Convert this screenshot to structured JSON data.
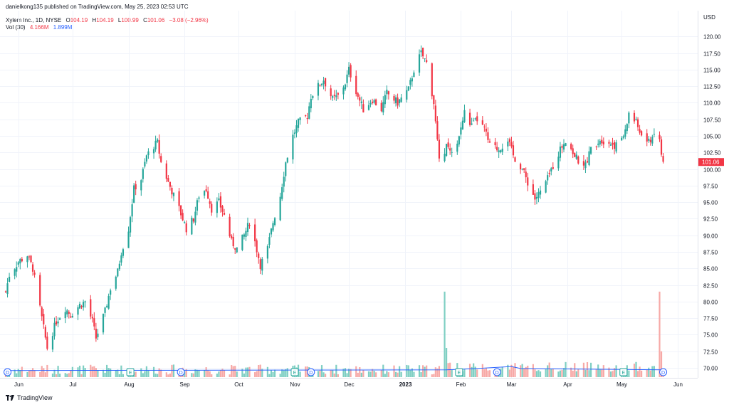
{
  "header": {
    "published": "danielkong135 published on TradingView.com, May 25, 2023 02:53 UTC"
  },
  "legend": {
    "symbol": "Xylem Inc., 1D, NYSE",
    "o_label": "O",
    "o_value": "104.19",
    "h_label": "H",
    "h_value": "104.19",
    "l_label": "L",
    "l_value": "100.99",
    "c_label": "C",
    "c_value": "101.06",
    "change": "−3.08 (−2.96%)",
    "vol_label": "Vol (30)",
    "vol_value": "4.166M",
    "vol_ma_value": "1.899M"
  },
  "footer": {
    "brand": "TradingView"
  },
  "colors": {
    "up": "#26a69a",
    "down": "#f23645",
    "up_vol": "#7fcfc3",
    "down_vol": "#f7a9a7",
    "vol_ma": "#2962ff",
    "grid": "#f0f3fa",
    "axis_text": "#131722"
  },
  "chart_data": {
    "type": "candlestick",
    "currency_label": "USD",
    "last_price_label": "101.06",
    "y_ticks": [
      "70.00",
      "72.50",
      "75.00",
      "77.50",
      "80.00",
      "82.50",
      "85.00",
      "87.50",
      "90.00",
      "92.50",
      "95.00",
      "97.50",
      "100.00",
      "102.50",
      "105.00",
      "107.50",
      "110.00",
      "112.50",
      "115.00",
      "117.50",
      "120.00"
    ],
    "ylim": [
      68.6,
      122.5
    ],
    "x_labels": [
      "Jun",
      "Jul",
      "Aug",
      "Sep",
      "Oct",
      "Nov",
      "Dec",
      "2023",
      "Feb",
      "Mar",
      "Apr",
      "May",
      "Jun"
    ],
    "x_range": [
      "2022-05-25",
      "2023-06-05"
    ],
    "x_label_dates": [
      "2022-06-01",
      "2022-07-01",
      "2022-08-01",
      "2022-09-01",
      "2022-10-01",
      "2022-11-01",
      "2022-12-01",
      "2023-01-01",
      "2023-02-01",
      "2023-03-01",
      "2023-04-01",
      "2023-05-01",
      "2023-06-01"
    ],
    "earnings_markers": [
      "2022-08-02",
      "2022-11-01",
      "2023-01-31",
      "2023-05-02"
    ],
    "dividend_markers": [
      "2022-05-26",
      "2022-08-30",
      "2022-11-10",
      "2023-02-21",
      "2023-05-24"
    ],
    "anchor_path": [
      [
        "2022-05-25",
        81.5
      ],
      [
        "2022-05-27",
        84.0
      ],
      [
        "2022-06-01",
        86.0
      ],
      [
        "2022-06-06",
        87.0
      ],
      [
        "2022-06-09",
        85.0
      ],
      [
        "2022-06-13",
        79.0
      ],
      [
        "2022-06-16",
        74.5
      ],
      [
        "2022-06-17",
        73.0
      ],
      [
        "2022-06-22",
        77.0
      ],
      [
        "2022-06-27",
        79.0
      ],
      [
        "2022-06-30",
        78.0
      ],
      [
        "2022-07-05",
        79.5
      ],
      [
        "2022-07-08",
        80.0
      ],
      [
        "2022-07-12",
        77.0
      ],
      [
        "2022-07-14",
        74.5
      ],
      [
        "2022-07-19",
        78.5
      ],
      [
        "2022-07-22",
        82.0
      ],
      [
        "2022-07-26",
        84.5
      ],
      [
        "2022-07-28",
        87.5
      ],
      [
        "2022-08-01",
        91.0
      ],
      [
        "2022-08-04",
        97.0
      ],
      [
        "2022-08-08",
        98.5
      ],
      [
        "2022-08-11",
        102.0
      ],
      [
        "2022-08-15",
        103.5
      ],
      [
        "2022-08-17",
        104.0
      ],
      [
        "2022-08-19",
        101.0
      ],
      [
        "2022-08-23",
        98.0
      ],
      [
        "2022-08-26",
        96.0
      ],
      [
        "2022-08-29",
        94.0
      ],
      [
        "2022-09-02",
        91.0
      ],
      [
        "2022-09-06",
        92.5
      ],
      [
        "2022-09-09",
        96.0
      ],
      [
        "2022-09-13",
        97.0
      ],
      [
        "2022-09-16",
        94.0
      ],
      [
        "2022-09-20",
        95.0
      ],
      [
        "2022-09-23",
        93.0
      ],
      [
        "2022-09-27",
        89.0
      ],
      [
        "2022-09-30",
        88.0
      ],
      [
        "2022-10-04",
        90.0
      ],
      [
        "2022-10-07",
        92.0
      ],
      [
        "2022-10-10",
        89.0
      ],
      [
        "2022-10-13",
        85.5
      ],
      [
        "2022-10-17",
        88.0
      ],
      [
        "2022-10-20",
        92.0
      ],
      [
        "2022-10-24",
        96.0
      ],
      [
        "2022-10-27",
        101.0
      ],
      [
        "2022-10-31",
        105.0
      ],
      [
        "2022-11-03",
        107.0
      ],
      [
        "2022-11-08",
        108.0
      ],
      [
        "2022-11-10",
        111.0
      ],
      [
        "2022-11-14",
        112.5
      ],
      [
        "2022-11-17",
        113.5
      ],
      [
        "2022-11-22",
        110.5
      ],
      [
        "2022-11-25",
        111.0
      ],
      [
        "2022-11-29",
        113.0
      ],
      [
        "2022-12-01",
        115.0
      ],
      [
        "2022-12-06",
        111.0
      ],
      [
        "2022-12-09",
        109.0
      ],
      [
        "2022-12-14",
        110.5
      ],
      [
        "2022-12-19",
        109.0
      ],
      [
        "2022-12-22",
        111.5
      ],
      [
        "2022-12-28",
        110.0
      ],
      [
        "2023-01-03",
        112.0
      ],
      [
        "2023-01-06",
        115.0
      ],
      [
        "2023-01-10",
        117.5
      ],
      [
        "2023-01-13",
        116.0
      ],
      [
        "2023-01-17",
        110.0
      ],
      [
        "2023-01-20",
        101.0
      ],
      [
        "2023-01-24",
        103.5
      ],
      [
        "2023-01-27",
        102.0
      ],
      [
        "2023-01-31",
        105.0
      ],
      [
        "2023-02-03",
        108.5
      ],
      [
        "2023-02-07",
        106.5
      ],
      [
        "2023-02-10",
        107.5
      ],
      [
        "2023-02-14",
        106.0
      ],
      [
        "2023-02-17",
        103.5
      ],
      [
        "2023-02-22",
        103.0
      ],
      [
        "2023-02-27",
        104.5
      ],
      [
        "2023-03-02",
        102.0
      ],
      [
        "2023-03-07",
        100.0
      ],
      [
        "2023-03-10",
        98.0
      ],
      [
        "2023-03-14",
        95.5
      ],
      [
        "2023-03-17",
        96.5
      ],
      [
        "2023-03-21",
        98.5
      ],
      [
        "2023-03-24",
        100.5
      ],
      [
        "2023-03-28",
        103.0
      ],
      [
        "2023-03-31",
        104.5
      ],
      [
        "2023-04-05",
        102.0
      ],
      [
        "2023-04-10",
        100.0
      ],
      [
        "2023-04-14",
        103.0
      ],
      [
        "2023-04-19",
        104.5
      ],
      [
        "2023-04-24",
        104.0
      ],
      [
        "2023-04-28",
        103.5
      ],
      [
        "2023-05-03",
        105.5
      ],
      [
        "2023-05-05",
        108.5
      ],
      [
        "2023-05-09",
        107.0
      ],
      [
        "2023-05-12",
        105.0
      ],
      [
        "2023-05-16",
        104.0
      ],
      [
        "2023-05-19",
        105.5
      ],
      [
        "2023-05-22",
        104.19
      ],
      [
        "2023-05-24",
        101.06
      ]
    ],
    "volume_spikes": [
      [
        "2023-01-23",
        81.5
      ],
      [
        "2023-01-24",
        73.0
      ],
      [
        "2023-05-22",
        81.5
      ],
      [
        "2023-05-23",
        72.5
      ]
    ],
    "volume_ma_path": [
      [
        "2022-05-25",
        69.6
      ],
      [
        "2023-01-24",
        69.7
      ],
      [
        "2023-02-10",
        69.9
      ],
      [
        "2023-03-01",
        70.2
      ],
      [
        "2023-03-06",
        69.9
      ],
      [
        "2023-05-24",
        69.7
      ]
    ]
  }
}
